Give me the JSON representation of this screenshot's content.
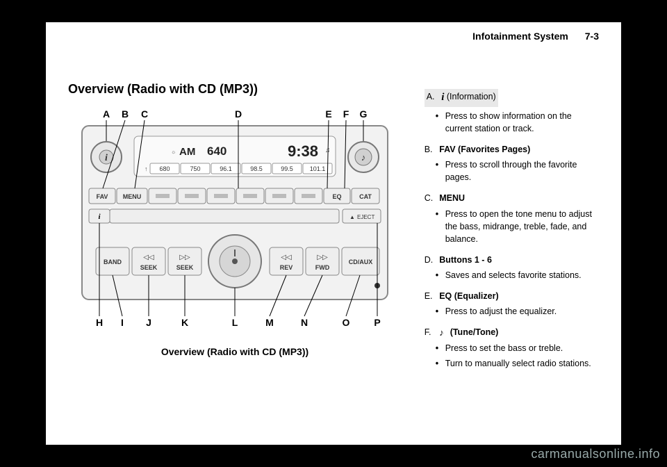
{
  "header": {
    "title": "Infotainment System",
    "page": "7-3"
  },
  "sectionTitle": "Overview (Radio with CD (MP3))",
  "diagram": {
    "topLetters": [
      "A",
      "B",
      "C",
      "D",
      "E",
      "F",
      "G"
    ],
    "bottomLetters": [
      "H",
      "I",
      "J",
      "K",
      "L",
      "M",
      "N",
      "O",
      "P"
    ],
    "caption": "Overview (Radio with CD (MP3))",
    "display": {
      "band": "AM",
      "freq": "640",
      "clock": "9:38",
      "presets": [
        "680",
        "750",
        "96.1",
        "98.5",
        "99.5",
        "101.1"
      ]
    },
    "row1": [
      "FAV",
      "MENU",
      "",
      "",
      "",
      "",
      "",
      "",
      "EQ",
      "CAT"
    ],
    "ejectLabel": "EJECT",
    "row3": [
      "BAND",
      "SEEK",
      "SEEK",
      "REV",
      "FWD",
      "CD/AUX"
    ],
    "seekLeft": "◁◁",
    "seekRight": "▷▷",
    "revIcon": "◁◁",
    "fwdIcon": "▷▷"
  },
  "controls": {
    "A": {
      "labelPrefix": "",
      "icon": "i",
      "labelSuffix": "(Information)",
      "bullets": [
        "Press to show information on the current station or track."
      ]
    },
    "B": {
      "label": "FAV (Favorites Pages)",
      "bullets": [
        "Press to scroll through the favorite pages."
      ]
    },
    "C": {
      "label": "MENU",
      "bullets": [
        "Press to open the tone menu to adjust the bass, midrange, treble, fade, and balance."
      ]
    },
    "D": {
      "label": "Buttons 1 - 6",
      "bullets": [
        "Saves and selects favorite stations."
      ]
    },
    "E": {
      "label": "EQ (Equalizer)",
      "bullets": [
        "Press to adjust the equalizer."
      ]
    },
    "F": {
      "label": "(Tune/Tone)",
      "icon": "tune",
      "bullets": [
        "Press to set the bass or treble.",
        "Turn to manually select radio stations."
      ]
    }
  },
  "watermark": "carmanualsonline.info"
}
